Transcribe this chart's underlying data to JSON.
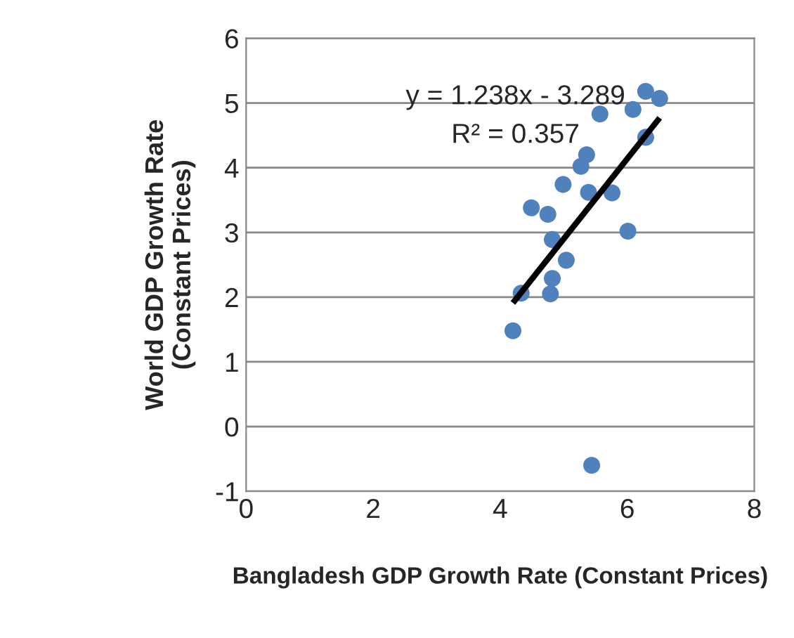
{
  "chart_data": {
    "type": "scatter",
    "xlabel": "Bangladesh GDP Growth Rate (Constant Prices)",
    "ylabel": "World GDP Growth Rate (Constant Prices)",
    "series": [
      {
        "type": "scatter",
        "color": "#4f81bd",
        "marker": "circle",
        "x": [
          6.29,
          6.51,
          6.09,
          5.57,
          6.29,
          5.36,
          5.27,
          4.99,
          5.39,
          5.76,
          4.49,
          4.75,
          6.01,
          4.82,
          5.04,
          4.82,
          4.33,
          4.79,
          4.2,
          5.44
        ],
        "values": [
          5.18,
          5.07,
          4.9,
          4.83,
          4.47,
          4.2,
          4.02,
          3.74,
          3.62,
          3.61,
          3.38,
          3.28,
          3.02,
          2.89,
          2.57,
          2.29,
          2.06,
          2.05,
          1.48,
          -0.6
        ]
      },
      {
        "type": "line",
        "color": "#000000",
        "x": [
          4.2,
          6.51
        ],
        "values": [
          1.91,
          4.77
        ]
      }
    ],
    "annotations": [
      "y = 1.238x - 3.289",
      "R² = 0.357"
    ],
    "xlim": [
      0,
      8
    ],
    "xticks": [
      0,
      2,
      4,
      6,
      8
    ],
    "ylim": [
      -1,
      6
    ],
    "yticks": [
      -1,
      0,
      1,
      2,
      3,
      4,
      5,
      6
    ],
    "grid": "y",
    "legend": false
  }
}
